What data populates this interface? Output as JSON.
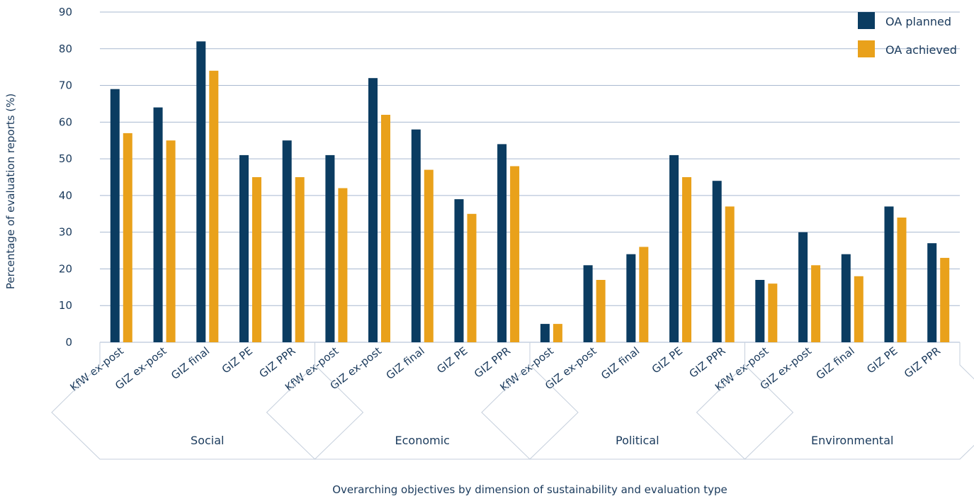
{
  "chart_data": {
    "type": "bar",
    "title": "",
    "xlabel": "Overarching objectives by dimension of sustainability and evaluation type",
    "ylabel": "Percentage of evaluation reports (%)",
    "ylim": [
      0,
      90
    ],
    "yticks": [
      0,
      10,
      20,
      30,
      40,
      50,
      60,
      70,
      80,
      90
    ],
    "grid": true,
    "legend_position": "top-right",
    "groups": [
      {
        "name": "Social",
        "categories": [
          "KfW ex-post",
          "GIZ ex-post",
          "GIZ final",
          "GIZ PE",
          "GIZ PPR"
        ]
      },
      {
        "name": "Economic",
        "categories": [
          "KfW ex-post",
          "GIZ ex-post",
          "GIZ final",
          "GIZ PE",
          "GIZ PPR"
        ]
      },
      {
        "name": "Political",
        "categories": [
          "KfW ex-post",
          "GIZ ex-post",
          "GIZ final",
          "GIZ PE",
          "GIZ PPR"
        ]
      },
      {
        "name": "Environmental",
        "categories": [
          "KfW ex-post",
          "GIZ ex-post",
          "GIZ final",
          "GIZ PE",
          "GIZ PPR"
        ]
      }
    ],
    "categories": [
      "KfW ex-post",
      "GIZ ex-post",
      "GIZ final",
      "GIZ PE",
      "GIZ PPR",
      "KfW ex-post",
      "GIZ ex-post",
      "GIZ final",
      "GIZ PE",
      "GIZ PPR",
      "KfW ex-post",
      "GIZ ex-post",
      "GIZ final",
      "GIZ PE",
      "GIZ PPR",
      "KfW ex-post",
      "GIZ ex-post",
      "GIZ final",
      "GIZ PE",
      "GIZ PPR"
    ],
    "series": [
      {
        "name": "OA planned",
        "color": "#0b3c61",
        "values": [
          69,
          64,
          82,
          51,
          55,
          51,
          72,
          58,
          39,
          54,
          5,
          21,
          24,
          51,
          44,
          17,
          30,
          24,
          37,
          27
        ]
      },
      {
        "name": "OA achieved",
        "color": "#e9a11b",
        "values": [
          57,
          55,
          74,
          45,
          45,
          42,
          62,
          47,
          35,
          48,
          5,
          17,
          26,
          45,
          37,
          16,
          21,
          18,
          34,
          23
        ]
      }
    ]
  }
}
